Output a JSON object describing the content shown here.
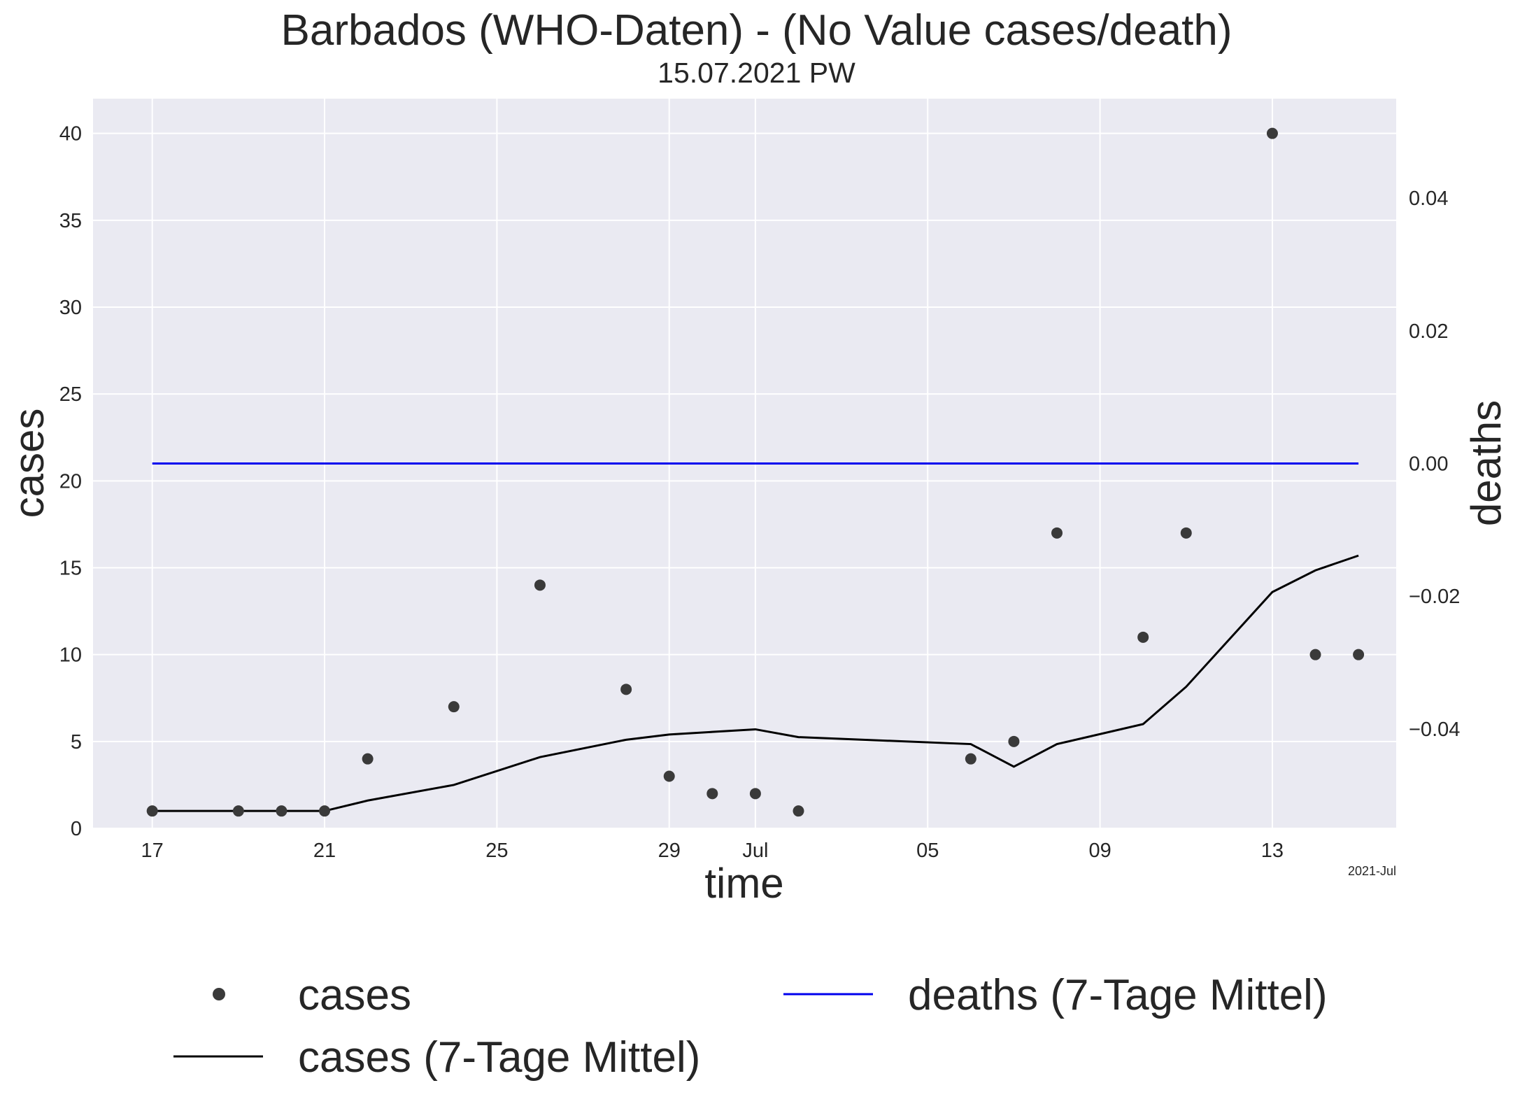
{
  "title": "Barbados (WHO-Daten) - (No Value cases/death)",
  "subtitle": "15.07.2021 PW",
  "colors": {
    "plot_background": "#eaeaf2",
    "grid": "#ffffff",
    "cases_points": "#3a3a3a",
    "cases_avg_line": "#000000",
    "deaths_line": "#0000ee",
    "deaths_axis_label": "#0000ee"
  },
  "chart_data": {
    "type": "line",
    "title": "Barbados (WHO-Daten) - (No Value cases/death)",
    "subtitle": "15.07.2021 PW",
    "xlabel": "time",
    "ylabel": "cases",
    "y2label": "deaths",
    "x_offset_label": "2021-Jul",
    "xlim": [
      "2021-06-15 15:00",
      "2021-07-15 21:00"
    ],
    "ylim": [
      0,
      42
    ],
    "y2lim": [
      -0.055,
      0.055
    ],
    "grid": true,
    "legend_position": "bottom",
    "x_ticks": [
      {
        "date": "2021-06-17",
        "label": "17"
      },
      {
        "date": "2021-06-21",
        "label": "21"
      },
      {
        "date": "2021-06-25",
        "label": "25"
      },
      {
        "date": "2021-06-29",
        "label": "29"
      },
      {
        "date": "2021-07-01",
        "label": "Jul"
      },
      {
        "date": "2021-07-05",
        "label": "05"
      },
      {
        "date": "2021-07-09",
        "label": "09"
      },
      {
        "date": "2021-07-13",
        "label": "13"
      }
    ],
    "y_ticks": [
      0,
      5,
      10,
      15,
      20,
      25,
      30,
      35,
      40
    ],
    "y_tick_labels": [
      "0",
      "5",
      "10",
      "15",
      "20",
      "25",
      "30",
      "35",
      "40"
    ],
    "y2_ticks": [
      -0.04,
      -0.02,
      0.0,
      0.02,
      0.04
    ],
    "y2_tick_labels": [
      "−0.04",
      "−0.02",
      "0.00",
      "0.02",
      "0.04"
    ],
    "series": [
      {
        "name": "cases",
        "kind": "scatter",
        "axis": "left",
        "x": [
          "2021-06-17",
          "2021-06-19",
          "2021-06-20",
          "2021-06-21",
          "2021-06-22",
          "2021-06-24",
          "2021-06-26",
          "2021-06-28",
          "2021-06-29",
          "2021-06-30",
          "2021-07-01",
          "2021-07-02",
          "2021-07-06",
          "2021-07-07",
          "2021-07-08",
          "2021-07-10",
          "2021-07-11",
          "2021-07-13",
          "2021-07-14",
          "2021-07-15"
        ],
        "y": [
          1,
          1,
          1,
          1,
          4,
          7,
          14,
          8,
          3,
          2,
          2,
          1,
          4,
          5,
          17,
          11,
          17,
          40,
          10,
          10
        ]
      },
      {
        "name": "cases (7-Tage Mittel)",
        "kind": "line",
        "axis": "left",
        "x": [
          "2021-06-17",
          "2021-06-19",
          "2021-06-20",
          "2021-06-21",
          "2021-06-22",
          "2021-06-24",
          "2021-06-26",
          "2021-06-28",
          "2021-06-29",
          "2021-06-30",
          "2021-07-01",
          "2021-07-02",
          "2021-07-06",
          "2021-07-07",
          "2021-07-08",
          "2021-07-10",
          "2021-07-11",
          "2021-07-13",
          "2021-07-14",
          "2021-07-15"
        ],
        "y": [
          1.0,
          1.0,
          1.0,
          1.0,
          1.6,
          2.5,
          4.1,
          5.1,
          5.4,
          5.55,
          5.7,
          5.25,
          4.85,
          3.55,
          4.85,
          6.0,
          8.15,
          13.6,
          14.85,
          15.7
        ]
      },
      {
        "name": "deaths (7-Tage Mittel)",
        "kind": "line",
        "axis": "right",
        "x": [
          "2021-06-17",
          "2021-07-15"
        ],
        "y": [
          0.0,
          0.0
        ]
      }
    ],
    "legend": [
      "cases",
      "cases (7-Tage Mittel)",
      "deaths (7-Tage Mittel)"
    ]
  }
}
